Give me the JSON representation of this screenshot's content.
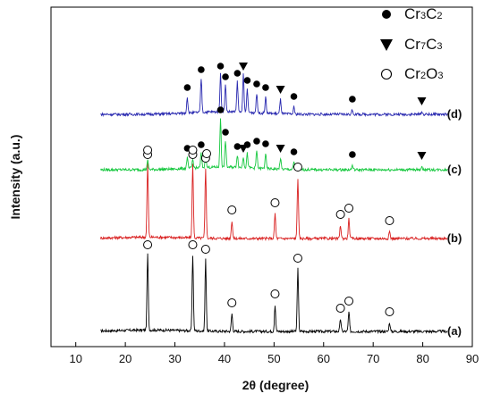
{
  "chart_data": {
    "type": "line",
    "xlabel": "2θ (degree)",
    "ylabel": "Intensity (a.u.)",
    "xlim": [
      5,
      90
    ],
    "x_ticks": [
      "10",
      "20",
      "30",
      "40",
      "50",
      "60",
      "70",
      "80",
      "90"
    ],
    "grid": false,
    "legend_position": "top-right",
    "legend": [
      {
        "marker": "filled-circle",
        "parts": [
          "Cr",
          "3",
          "C",
          "2"
        ]
      },
      {
        "marker": "filled-down-triangle",
        "parts": [
          "Cr",
          "7",
          "C",
          "3"
        ]
      },
      {
        "marker": "open-circle",
        "parts": [
          "Cr",
          "2",
          "O",
          "3"
        ]
      }
    ],
    "series": [
      {
        "label": "(a)",
        "color": "#000000",
        "x_range": [
          15,
          85
        ],
        "peaks": [
          {
            "x": 24.5,
            "h": 0.85
          },
          {
            "x": 33.6,
            "h": 0.85
          },
          {
            "x": 36.2,
            "h": 0.8
          },
          {
            "x": 41.5,
            "h": 0.2
          },
          {
            "x": 50.2,
            "h": 0.3
          },
          {
            "x": 54.8,
            "h": 0.7
          },
          {
            "x": 63.4,
            "h": 0.14
          },
          {
            "x": 65.1,
            "h": 0.22
          },
          {
            "x": 73.3,
            "h": 0.1
          }
        ],
        "markers": [
          {
            "x": 24.5,
            "type": "open-circle"
          },
          {
            "x": 33.6,
            "type": "open-circle"
          },
          {
            "x": 36.2,
            "type": "open-circle"
          },
          {
            "x": 41.5,
            "type": "open-circle"
          },
          {
            "x": 50.2,
            "type": "open-circle"
          },
          {
            "x": 54.8,
            "type": "open-circle"
          },
          {
            "x": 63.4,
            "type": "open-circle"
          },
          {
            "x": 65.1,
            "type": "open-circle"
          },
          {
            "x": 73.3,
            "type": "open-circle"
          }
        ]
      },
      {
        "label": "(b)",
        "color": "#d92020",
        "x_range": [
          15,
          85
        ],
        "peaks": [
          {
            "x": 24.5,
            "h": 0.82
          },
          {
            "x": 33.6,
            "h": 0.82
          },
          {
            "x": 36.2,
            "h": 0.78
          },
          {
            "x": 41.5,
            "h": 0.2
          },
          {
            "x": 50.2,
            "h": 0.28
          },
          {
            "x": 54.8,
            "h": 0.68
          },
          {
            "x": 63.4,
            "h": 0.15
          },
          {
            "x": 65.1,
            "h": 0.22
          },
          {
            "x": 73.3,
            "h": 0.08
          }
        ],
        "markers": [
          {
            "x": 24.5,
            "type": "open-circle"
          },
          {
            "x": 33.6,
            "type": "open-circle"
          },
          {
            "x": 36.2,
            "type": "open-circle"
          },
          {
            "x": 41.5,
            "type": "open-circle"
          },
          {
            "x": 50.2,
            "type": "open-circle"
          },
          {
            "x": 54.8,
            "type": "open-circle"
          },
          {
            "x": 63.4,
            "type": "open-circle"
          },
          {
            "x": 65.1,
            "type": "open-circle"
          },
          {
            "x": 73.3,
            "type": "open-circle"
          }
        ]
      },
      {
        "label": "(c)",
        "color": "#18c840",
        "x_range": [
          15,
          85
        ],
        "peaks": [
          {
            "x": 24.5,
            "h": 0.1
          },
          {
            "x": 32.5,
            "h": 0.12
          },
          {
            "x": 33.6,
            "h": 0.1
          },
          {
            "x": 35.3,
            "h": 0.16
          },
          {
            "x": 36.2,
            "h": 0.12
          },
          {
            "x": 39.2,
            "h": 0.55
          },
          {
            "x": 40.2,
            "h": 0.3
          },
          {
            "x": 42.6,
            "h": 0.14
          },
          {
            "x": 43.8,
            "h": 0.12
          },
          {
            "x": 44.6,
            "h": 0.16
          },
          {
            "x": 46.5,
            "h": 0.2
          },
          {
            "x": 48.3,
            "h": 0.17
          },
          {
            "x": 51.3,
            "h": 0.12
          },
          {
            "x": 54.0,
            "h": 0.08
          },
          {
            "x": 65.8,
            "h": 0.05
          },
          {
            "x": 79.8,
            "h": 0.04
          }
        ],
        "markers": [
          {
            "x": 24.5,
            "type": "open-circle"
          },
          {
            "x": 32.5,
            "type": "filled-circle"
          },
          {
            "x": 33.6,
            "type": "open-circle"
          },
          {
            "x": 35.3,
            "type": "filled-circle"
          },
          {
            "x": 36.4,
            "type": "open-circle"
          },
          {
            "x": 39.2,
            "type": "filled-circle"
          },
          {
            "x": 40.2,
            "type": "filled-circle"
          },
          {
            "x": 42.6,
            "type": "filled-circle"
          },
          {
            "x": 43.8,
            "type": "filled-down-triangle"
          },
          {
            "x": 44.6,
            "type": "filled-circle"
          },
          {
            "x": 46.5,
            "type": "filled-circle"
          },
          {
            "x": 48.3,
            "type": "filled-circle"
          },
          {
            "x": 51.3,
            "type": "filled-down-triangle"
          },
          {
            "x": 54.0,
            "type": "filled-circle"
          },
          {
            "x": 65.8,
            "type": "filled-circle"
          },
          {
            "x": 79.8,
            "type": "filled-down-triangle"
          }
        ]
      },
      {
        "label": "(d)",
        "color": "#2a2ab0",
        "x_range": [
          15,
          85
        ],
        "peaks": [
          {
            "x": 32.5,
            "h": 0.18
          },
          {
            "x": 35.3,
            "h": 0.38
          },
          {
            "x": 39.2,
            "h": 0.42
          },
          {
            "x": 40.2,
            "h": 0.3
          },
          {
            "x": 42.6,
            "h": 0.34
          },
          {
            "x": 43.8,
            "h": 0.42
          },
          {
            "x": 44.6,
            "h": 0.26
          },
          {
            "x": 46.5,
            "h": 0.22
          },
          {
            "x": 48.3,
            "h": 0.18
          },
          {
            "x": 51.3,
            "h": 0.16
          },
          {
            "x": 54.0,
            "h": 0.08
          },
          {
            "x": 65.8,
            "h": 0.05
          },
          {
            "x": 79.8,
            "h": 0.03
          }
        ],
        "markers": [
          {
            "x": 32.5,
            "type": "filled-circle"
          },
          {
            "x": 35.3,
            "type": "filled-circle"
          },
          {
            "x": 39.2,
            "type": "filled-circle"
          },
          {
            "x": 40.2,
            "type": "filled-circle"
          },
          {
            "x": 42.6,
            "type": "filled-circle"
          },
          {
            "x": 43.8,
            "type": "filled-down-triangle"
          },
          {
            "x": 44.6,
            "type": "filled-circle"
          },
          {
            "x": 46.5,
            "type": "filled-circle"
          },
          {
            "x": 48.3,
            "type": "filled-circle"
          },
          {
            "x": 51.3,
            "type": "filled-down-triangle"
          },
          {
            "x": 54.0,
            "type": "filled-circle"
          },
          {
            "x": 65.8,
            "type": "filled-circle"
          },
          {
            "x": 79.8,
            "type": "filled-down-triangle"
          }
        ]
      }
    ]
  }
}
